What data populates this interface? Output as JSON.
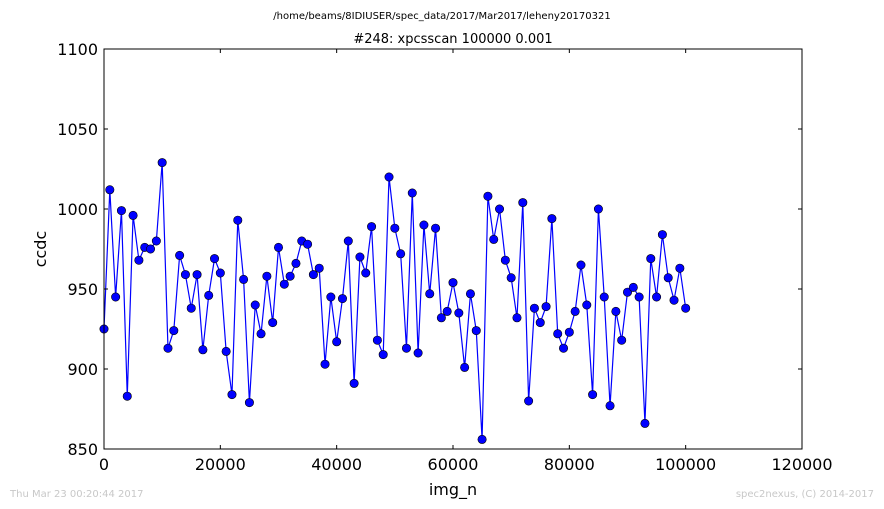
{
  "header": {
    "filepath": "/home/beams/8IDIUSER/spec_data/2017/Mar2017/leheny20170321"
  },
  "footer": {
    "timestamp": "Thu Mar 23 00:20:44 2017",
    "credit": "spec2nexus, (C) 2014-2017"
  },
  "chart_data": {
    "type": "line",
    "title": "#248: xpcsscan 100000 0.001",
    "xlabel": "img_n",
    "ylabel": "ccdc",
    "xlim": [
      0,
      120000
    ],
    "ylim": [
      850,
      1100
    ],
    "xticks": [
      "0",
      "20000",
      "40000",
      "60000",
      "80000",
      "100000",
      "120000"
    ],
    "yticks": [
      "850",
      "900",
      "950",
      "1000",
      "1050",
      "1100"
    ],
    "grid": false,
    "color": "#0000ff",
    "marker": "circle",
    "series": [
      {
        "x": [
          0,
          1000,
          2000,
          3000,
          4000,
          5000,
          6000,
          7000,
          8000,
          9000,
          10000,
          11000,
          12000,
          13000,
          14000,
          15000,
          16000,
          17000,
          18000,
          19000,
          20000,
          21000,
          22000,
          23000,
          24000,
          25000,
          26000,
          27000,
          28000,
          29000,
          30000,
          31000,
          32000,
          33000,
          34000,
          35000,
          36000,
          37000,
          38000,
          39000,
          40000,
          41000,
          42000,
          43000,
          44000,
          45000,
          46000,
          47000,
          48000,
          49000,
          50000,
          51000,
          52000,
          53000,
          54000,
          55000,
          56000,
          57000,
          58000,
          59000,
          60000,
          61000,
          62000,
          63000,
          64000,
          65000,
          66000,
          67000,
          68000,
          69000,
          70000,
          71000,
          72000,
          73000,
          74000,
          75000,
          76000,
          77000,
          78000,
          79000,
          80000,
          81000,
          82000,
          83000,
          84000,
          85000,
          86000,
          87000,
          88000,
          89000,
          90000,
          91000,
          92000,
          93000,
          94000,
          95000,
          96000,
          97000,
          98000,
          99000,
          100000
        ],
        "y": [
          925,
          1012,
          945,
          999,
          883,
          996,
          968,
          976,
          975,
          980,
          1029,
          913,
          924,
          971,
          959,
          938,
          959,
          912,
          946,
          969,
          960,
          911,
          884,
          993,
          956,
          879,
          940,
          922,
          958,
          929,
          976,
          953,
          958,
          966,
          980,
          978,
          959,
          963,
          903,
          945,
          917,
          944,
          980,
          891,
          970,
          960,
          989,
          918,
          909,
          1020,
          988,
          972,
          913,
          1010,
          910,
          990,
          947,
          988,
          932,
          936,
          954,
          935,
          901,
          947,
          924,
          856,
          1008,
          981,
          1000,
          968,
          957,
          932,
          1004,
          880,
          938,
          929,
          939,
          994,
          922,
          913,
          923,
          936,
          965,
          940,
          884,
          1000,
          945,
          877,
          936,
          918,
          948,
          951,
          945,
          866,
          969,
          945,
          984,
          957,
          943,
          963,
          938
        ]
      }
    ]
  }
}
